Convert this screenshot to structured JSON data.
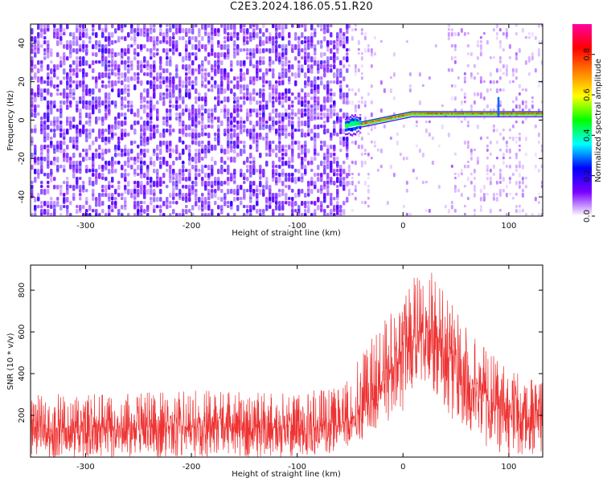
{
  "title": "C2E3.2024.186.05.51.R20",
  "chart_data": [
    {
      "type": "heatmap",
      "panel": "top",
      "xlabel": "Height of straight line (km)",
      "ylabel": "Frequency (Hz)",
      "xlim": [
        -352,
        132
      ],
      "ylim": [
        -50,
        50
      ],
      "xticks": [
        -300,
        -200,
        -100,
        0,
        100
      ],
      "yticks": [
        -40,
        -20,
        0,
        20,
        40
      ],
      "colorbar": {
        "label": "Normalized spectral amplitude",
        "range": [
          0,
          0.95
        ],
        "ticks": [
          "0.0",
          "0.2",
          "0.4",
          "0.6",
          "0.8"
        ],
        "tick_values": [
          0,
          0.2,
          0.4,
          0.6,
          0.8
        ],
        "colors": [
          "#ffffff",
          "#7b00ff",
          "#0000ff",
          "#00ffff",
          "#00ff00",
          "#ffff00",
          "#ff8000",
          "#ff0000",
          "#ff00a0"
        ]
      },
      "regions": [
        {
          "name": "noise",
          "x_range": [
            -352,
            -52
          ],
          "freq_range": [
            -50,
            50
          ],
          "level": 0.15
        },
        {
          "name": "signal",
          "x_range": [
            -55,
            132
          ],
          "center_freq_start": -4,
          "center_freq_end": 3,
          "peak_level": 0.85
        }
      ]
    },
    {
      "type": "line",
      "panel": "bottom",
      "xlabel": "Height of straight line (km)",
      "ylabel": "SNR (10 * v/v)",
      "xlim": [
        -352,
        132
      ],
      "ylim": [
        0,
        920
      ],
      "xticks": [
        -300,
        -200,
        -100,
        0,
        100
      ],
      "yticks": [
        200,
        400,
        600,
        800
      ],
      "color": "#ee3333",
      "series": [
        {
          "name": "SNR",
          "envelope": {
            "x": [
              -352,
              -300,
              -200,
              -100,
              -60,
              -40,
              -20,
              0,
              10,
              25,
              30,
              50,
              80,
              100,
              132
            ],
            "mean": [
              140,
              140,
              145,
              140,
              150,
              230,
              350,
              480,
              560,
              620,
              580,
              420,
              280,
              210,
              170
            ],
            "high": [
              310,
              300,
              320,
              320,
              330,
              480,
              650,
              760,
              870,
              920,
              860,
              700,
              520,
              420,
              360
            ],
            "low": [
              0,
              0,
              0,
              0,
              20,
              80,
              120,
              220,
              280,
              330,
              300,
              160,
              40,
              10,
              0
            ]
          }
        }
      ]
    }
  ]
}
